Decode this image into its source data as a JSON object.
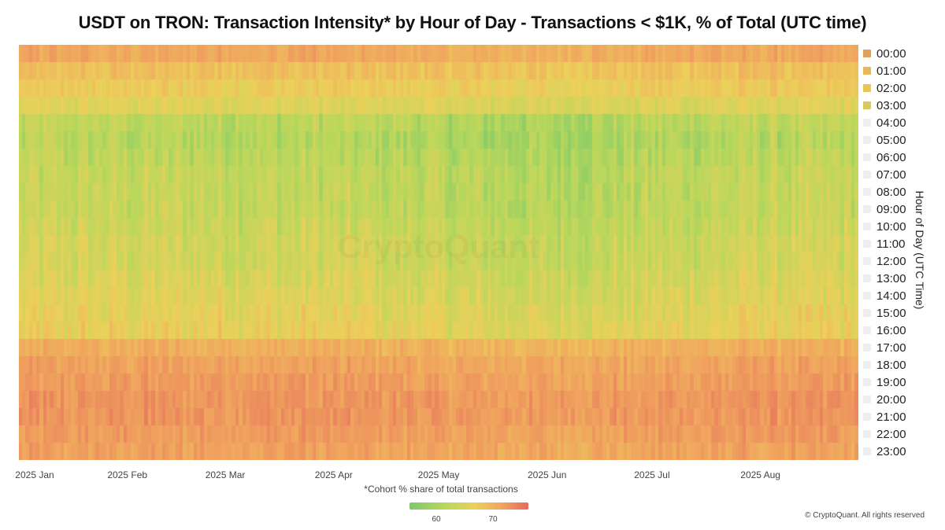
{
  "chart_data": {
    "type": "heatmap",
    "title": "USDT on TRON: Transaction Intensity* by Hour of Day - Transactions < $1K, % of Total (UTC time)",
    "ylabel": "Hour of Day (UTC Time)",
    "x_start": "2025-01-01",
    "x_end": "2025-08-28",
    "x_tick_labels": [
      "2025 Jan",
      "2025 Feb",
      "2025 Mar",
      "2025 Apr",
      "2025 May",
      "2025 Jun",
      "2025 Jul",
      "2025 Aug"
    ],
    "x_tick_dates": [
      "2025-01-01",
      "2025-02-01",
      "2025-03-01",
      "2025-04-01",
      "2025-05-01",
      "2025-06-01",
      "2025-07-01",
      "2025-08-01"
    ],
    "rows": [
      "00:00",
      "01:00",
      "02:00",
      "03:00",
      "04:00",
      "05:00",
      "06:00",
      "07:00",
      "08:00",
      "09:00",
      "10:00",
      "11:00",
      "12:00",
      "13:00",
      "14:00",
      "15:00",
      "16:00",
      "17:00",
      "18:00",
      "19:00",
      "20:00",
      "21:00",
      "22:00",
      "23:00"
    ],
    "row_base_values": [
      68.5,
      66.5,
      65.5,
      64.0,
      61.5,
      61.0,
      61.5,
      62.0,
      62.0,
      62.0,
      62.5,
      63.0,
      63.0,
      63.5,
      64.0,
      64.5,
      65.0,
      68.0,
      69.0,
      69.5,
      70.0,
      70.0,
      69.5,
      69.0
    ],
    "legend_markers": [
      {
        "label": "00:00",
        "color": "#e0a254",
        "active": true
      },
      {
        "label": "01:00",
        "color": "#e8b857",
        "active": true
      },
      {
        "label": "02:00",
        "color": "#e8c653",
        "active": true
      },
      {
        "label": "03:00",
        "color": "#d8c95c",
        "active": true
      },
      {
        "label": "04:00",
        "color": "#eeeeee",
        "active": false
      },
      {
        "label": "05:00",
        "color": "#eeeeee",
        "active": false
      },
      {
        "label": "06:00",
        "color": "#eeeeee",
        "active": false
      },
      {
        "label": "07:00",
        "color": "#eeeeee",
        "active": false
      },
      {
        "label": "08:00",
        "color": "#eeeeee",
        "active": false
      },
      {
        "label": "09:00",
        "color": "#eeeeee",
        "active": false
      },
      {
        "label": "10:00",
        "color": "#eeeeee",
        "active": false
      },
      {
        "label": "11:00",
        "color": "#eeeeee",
        "active": false
      },
      {
        "label": "12:00",
        "color": "#eeeeee",
        "active": false
      },
      {
        "label": "13:00",
        "color": "#eeeeee",
        "active": false
      },
      {
        "label": "14:00",
        "color": "#eeeeee",
        "active": false
      },
      {
        "label": "15:00",
        "color": "#eeeeee",
        "active": false
      },
      {
        "label": "16:00",
        "color": "#eeeeee",
        "active": false
      },
      {
        "label": "17:00",
        "color": "#eeeeee",
        "active": false
      },
      {
        "label": "18:00",
        "color": "#eeeeee",
        "active": false
      },
      {
        "label": "19:00",
        "color": "#eeeeee",
        "active": false
      },
      {
        "label": "20:00",
        "color": "#eeeeee",
        "active": false
      },
      {
        "label": "21:00",
        "color": "#eeeeee",
        "active": false
      },
      {
        "label": "22:00",
        "color": "#eeeeee",
        "active": false
      },
      {
        "label": "23:00",
        "color": "#eeeeee",
        "active": false
      }
    ],
    "colorscale": {
      "ticks": [
        60,
        70
      ],
      "colors": [
        "#7cc96a",
        "#b9d75c",
        "#ecd05a",
        "#f0a35e",
        "#e46a5b"
      ],
      "value_range": [
        57,
        73
      ]
    },
    "footnote": "*Cohort % share of total transactions",
    "watermark": "CryptoQuant"
  },
  "copyright": "© CryptoQuant. All rights reserved"
}
